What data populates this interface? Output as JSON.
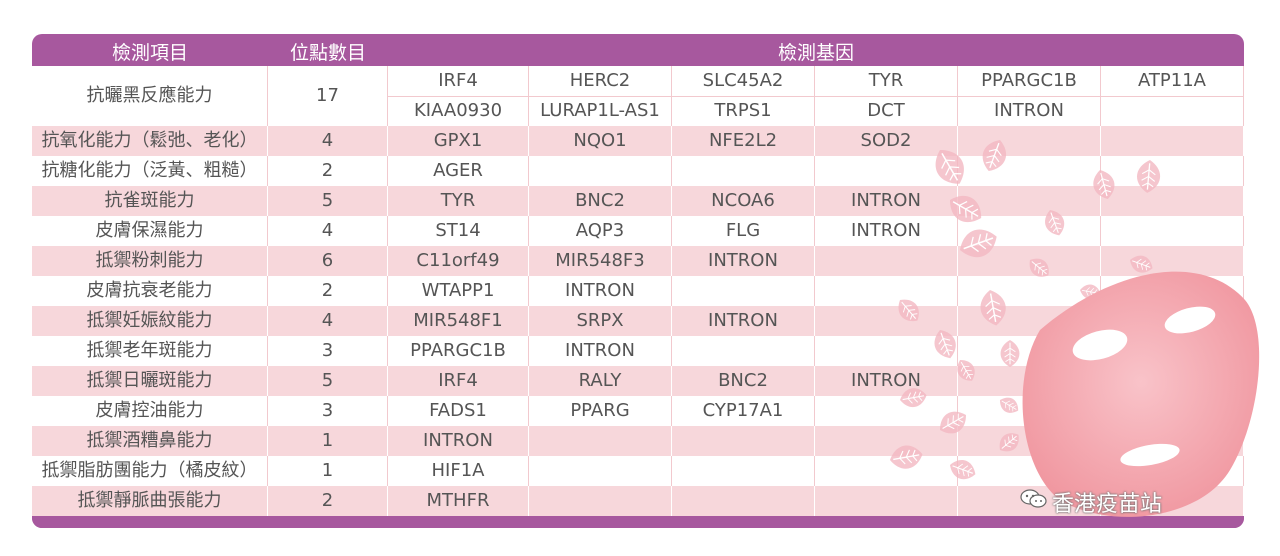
{
  "header": {
    "col_item": "檢測項目",
    "col_sites": "位點數目",
    "col_genes": "檢測基因"
  },
  "rows": [
    {
      "item": "抗曬黑反應能力",
      "sites": "17",
      "genes1": [
        "IRF4",
        "HERC2",
        "SLC45A2",
        "TYR",
        "PPARGC1B",
        "ATP11A"
      ],
      "genes2": [
        "KIAA0930",
        "LURAP1L-AS1",
        "TRPS1",
        "DCT",
        "INTRON",
        ""
      ]
    },
    {
      "item": "抗氧化能力（鬆弛、老化）",
      "sites": "4",
      "genes": [
        "GPX1",
        "NQO1",
        "NFE2L2",
        "SOD2",
        "",
        ""
      ]
    },
    {
      "item": "抗糖化能力（泛黃、粗糙）",
      "sites": "2",
      "genes": [
        "AGER",
        "",
        "",
        "",
        "",
        ""
      ]
    },
    {
      "item": "抗雀斑能力",
      "sites": "5",
      "genes": [
        "TYR",
        "BNC2",
        "NCOA6",
        "INTRON",
        "",
        ""
      ]
    },
    {
      "item": "皮膚保濕能力",
      "sites": "4",
      "genes": [
        "ST14",
        "AQP3",
        "FLG",
        "INTRON",
        "",
        ""
      ]
    },
    {
      "item": "抵禦粉刺能力",
      "sites": "6",
      "genes": [
        "C11orf49",
        "MIR548F3",
        "INTRON",
        "",
        "",
        ""
      ]
    },
    {
      "item": "皮膚抗衰老能力",
      "sites": "2",
      "genes": [
        "WTAPP1",
        "INTRON",
        "",
        "",
        "",
        ""
      ]
    },
    {
      "item": "抵禦妊娠紋能力",
      "sites": "4",
      "genes": [
        "MIR548F1",
        "SRPX",
        "INTRON",
        "",
        "",
        ""
      ]
    },
    {
      "item": "抵禦老年斑能力",
      "sites": "3",
      "genes": [
        "PPARGC1B",
        "INTRON",
        "",
        "",
        "",
        ""
      ]
    },
    {
      "item": "抵禦日曬斑能力",
      "sites": "5",
      "genes": [
        "IRF4",
        "RALY",
        "BNC2",
        "INTRON",
        "",
        ""
      ]
    },
    {
      "item": "皮膚控油能力",
      "sites": "3",
      "genes": [
        "FADS1",
        "PPARG",
        "CYP17A1",
        "",
        "",
        ""
      ]
    },
    {
      "item": "抵禦酒糟鼻能力",
      "sites": "1",
      "genes": [
        "INTRON",
        "",
        "",
        "",
        "",
        ""
      ]
    },
    {
      "item": "抵禦脂肪團能力（橘皮紋）",
      "sites": "1",
      "genes": [
        "HIF1A",
        "",
        "",
        "",
        "",
        ""
      ]
    },
    {
      "item": "抵禦靜脈曲張能力",
      "sites": "2",
      "genes": [
        "MTHFR",
        "",
        "",
        "",
        "",
        ""
      ]
    }
  ],
  "watermark": {
    "text": "香港疫苗站",
    "icon": "wechat-icon"
  },
  "colors": {
    "frame": "#a7589e",
    "row_pink": "#f7d7db",
    "text": "#555555"
  }
}
